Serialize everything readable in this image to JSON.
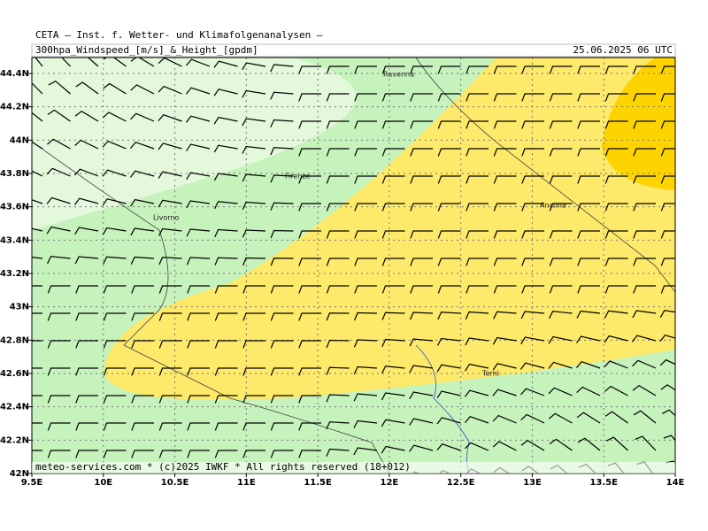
{
  "header": {
    "title": "CETA – Inst. f. Wetter- und Klimafolgenanalysen –",
    "subtitle": "300hpa_Windspeed_[m/s]_&_Height_[gpdm]",
    "date": "25.06.2025 06 UTC"
  },
  "map": {
    "lon_labels": [
      "9.5E",
      "10E",
      "10.5E",
      "11E",
      "11.5E",
      "12E",
      "12.5E",
      "13E",
      "13.5E",
      "14E"
    ],
    "lat_labels": [
      "42N",
      "42.2N",
      "42.4N",
      "42.6N",
      "42.8N",
      "43N",
      "43.2N",
      "43.4N",
      "43.6N",
      "43.8N",
      "44N",
      "44.2N",
      "44.4N"
    ],
    "cities": [
      "Ravenna",
      "Firenze",
      "Livorno",
      "Ancona",
      "Terni"
    ]
  },
  "footer": "meteo-services.com * (c)2025 IWKF * All rights reserved (18+012)"
}
